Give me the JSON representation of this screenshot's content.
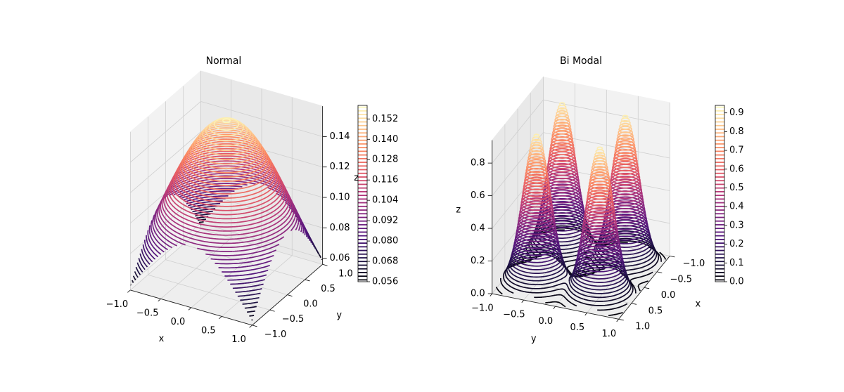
{
  "chart_data": [
    {
      "type": "contour3d",
      "title": "Normal",
      "xlabel": "x",
      "ylabel": "y",
      "zlabel": "z",
      "colormap": "magma",
      "xlim": [
        -1,
        1
      ],
      "ylim": [
        -1,
        1
      ],
      "zlim": [
        0.056,
        0.16
      ],
      "xticks": [
        {
          "value": -1,
          "label": "−1.0"
        },
        {
          "value": -0.5,
          "label": "−0.5"
        },
        {
          "value": 0,
          "label": "0.0"
        },
        0.5,
        {
          "value": 1,
          "label": "1.0"
        }
      ],
      "yticks": [
        {
          "value": -1,
          "label": "−1.0"
        },
        {
          "value": -0.5,
          "label": "−0.5"
        },
        {
          "value": 0,
          "label": "0.0"
        },
        0.5,
        {
          "value": 1,
          "label": "1.0"
        }
      ],
      "zticks": [
        0.06,
        0.08,
        {
          "value": 0.1,
          "label": "0.10"
        },
        0.12,
        0.14
      ],
      "colorbar": {
        "lim": [
          0.056,
          0.16
        ],
        "ticks": [
          0.056,
          0.068,
          {
            "value": 0.08,
            "label": "0.080"
          },
          0.092,
          0.104,
          0.116,
          0.128,
          {
            "value": 0.14,
            "label": "0.140"
          },
          0.152
        ]
      }
    },
    {
      "type": "contour3d",
      "title": "Bi Modal",
      "xlabel": "x",
      "ylabel": "y",
      "zlabel": "z",
      "colormap": "magma",
      "xlim": [
        -1,
        1
      ],
      "ylim": [
        -1,
        1
      ],
      "zlim": [
        0,
        0.94
      ],
      "xticks": [
        {
          "value": -1,
          "label": "−1.0"
        },
        {
          "value": -0.5,
          "label": "−0.5"
        },
        {
          "value": 0,
          "label": "0.0"
        },
        0.5,
        {
          "value": 1,
          "label": "1.0"
        }
      ],
      "yticks": [
        {
          "value": -1,
          "label": "−1.0"
        },
        {
          "value": -0.5,
          "label": "−0.5"
        },
        {
          "value": 0,
          "label": "0.0"
        },
        0.5,
        {
          "value": 1,
          "label": "1.0"
        }
      ],
      "zticks": [
        {
          "value": 0,
          "label": "0.0"
        },
        0.2,
        0.4,
        0.6,
        0.8
      ],
      "colorbar": {
        "lim": [
          0,
          0.94
        ],
        "ticks": [
          {
            "value": 0,
            "label": "0.0"
          },
          0.1,
          0.2,
          0.3,
          0.4,
          0.5,
          0.6,
          0.7,
          0.8,
          0.9
        ]
      }
    }
  ]
}
